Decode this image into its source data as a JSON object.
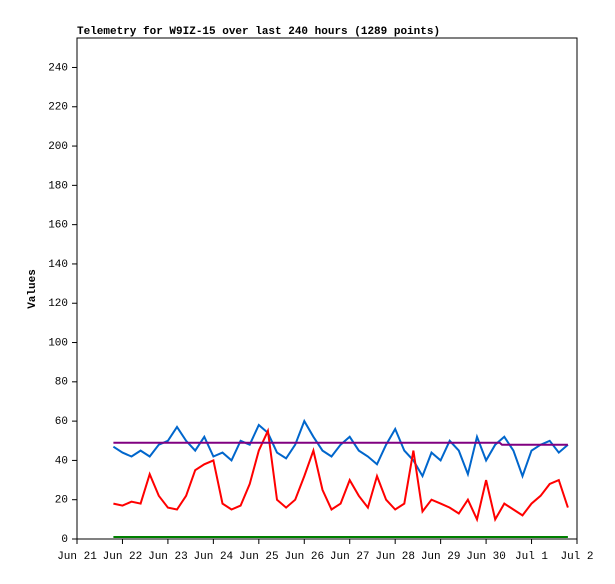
{
  "chart_data": {
    "type": "line",
    "title": "Telemetry for W9IZ-15 over last 240 hours (1289 points)",
    "ylabel": "Values",
    "xlim": [
      0,
      11
    ],
    "xticks": [
      {
        "value": 0,
        "label": "Jun 21"
      },
      {
        "value": 1,
        "label": "Jun 22"
      },
      {
        "value": 2,
        "label": "Jun 23"
      },
      {
        "value": 3,
        "label": "Jun 24"
      },
      {
        "value": 4,
        "label": "Jun 25"
      },
      {
        "value": 5,
        "label": "Jun 26"
      },
      {
        "value": 6,
        "label": "Jun 27"
      },
      {
        "value": 7,
        "label": "Jun 28"
      },
      {
        "value": 8,
        "label": "Jun 29"
      },
      {
        "value": 9,
        "label": "Jun 30"
      },
      {
        "value": 10,
        "label": "Jul 1"
      },
      {
        "value": 11,
        "label": "Jul 2"
      }
    ],
    "ylim": [
      0,
      255
    ],
    "yticks": [
      0,
      20,
      40,
      60,
      80,
      100,
      120,
      140,
      160,
      180,
      200,
      220,
      240
    ],
    "series": [
      {
        "color": "#0066cc",
        "x": [
          0.8,
          1.0,
          1.2,
          1.4,
          1.6,
          1.8,
          2.0,
          2.2,
          2.4,
          2.6,
          2.8,
          3.0,
          3.2,
          3.4,
          3.6,
          3.8,
          4.0,
          4.2,
          4.4,
          4.6,
          4.8,
          5.0,
          5.2,
          5.4,
          5.6,
          5.8,
          6.0,
          6.2,
          6.4,
          6.6,
          6.8,
          7.0,
          7.2,
          7.4,
          7.6,
          7.8,
          8.0,
          8.2,
          8.4,
          8.6,
          8.8,
          9.0,
          9.2,
          9.4,
          9.6,
          9.8,
          10.0,
          10.2,
          10.4,
          10.6,
          10.8
        ],
        "values": [
          47,
          44,
          42,
          45,
          42,
          48,
          50,
          57,
          50,
          45,
          52,
          42,
          44,
          40,
          50,
          48,
          58,
          54,
          44,
          41,
          48,
          60,
          52,
          45,
          42,
          48,
          52,
          45,
          42,
          38,
          48,
          56,
          45,
          40,
          32,
          44,
          40,
          50,
          45,
          33,
          52,
          40,
          48,
          52,
          45,
          32,
          45,
          48,
          50,
          44,
          48
        ]
      },
      {
        "color": "#ff0000",
        "x": [
          0.8,
          1.0,
          1.2,
          1.4,
          1.6,
          1.8,
          2.0,
          2.2,
          2.4,
          2.6,
          2.8,
          3.0,
          3.2,
          3.4,
          3.6,
          3.8,
          4.0,
          4.2,
          4.4,
          4.6,
          4.8,
          5.0,
          5.2,
          5.4,
          5.6,
          5.8,
          6.0,
          6.2,
          6.4,
          6.6,
          6.8,
          7.0,
          7.2,
          7.4,
          7.6,
          7.8,
          8.0,
          8.2,
          8.4,
          8.6,
          8.8,
          9.0,
          9.2,
          9.4,
          9.6,
          9.8,
          10.0,
          10.2,
          10.4,
          10.6,
          10.8
        ],
        "values": [
          18,
          17,
          19,
          18,
          33,
          22,
          16,
          15,
          22,
          35,
          38,
          40,
          18,
          15,
          17,
          28,
          45,
          55,
          20,
          16,
          20,
          32,
          45,
          25,
          15,
          18,
          30,
          22,
          16,
          32,
          20,
          15,
          18,
          45,
          14,
          20,
          18,
          16,
          13,
          20,
          10,
          30,
          10,
          18,
          15,
          12,
          18,
          22,
          28,
          30,
          16
        ]
      },
      {
        "color": "#800080",
        "x": [
          0.8,
          9.3,
          9.35,
          10.8
        ],
        "values": [
          49,
          49,
          48,
          48
        ]
      },
      {
        "color": "#008000",
        "x": [
          0.8,
          10.8
        ],
        "values": [
          1,
          1
        ]
      }
    ]
  }
}
